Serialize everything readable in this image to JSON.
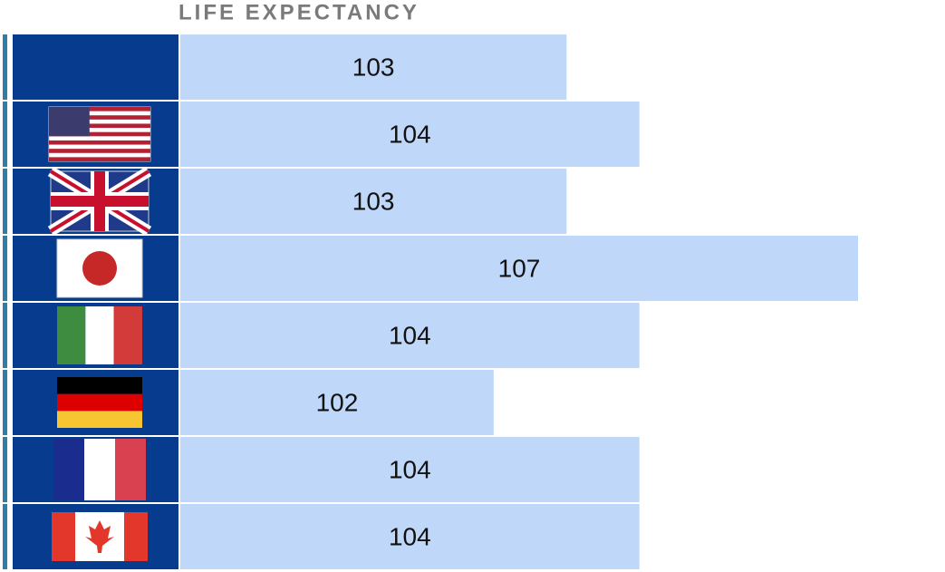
{
  "chart_data": {
    "type": "bar",
    "orientation": "horizontal",
    "title": "LIFE EXPECTANCY",
    "categories": [
      null,
      null,
      null,
      null,
      null,
      null,
      null,
      null
    ],
    "values": [
      103,
      104,
      103,
      107,
      104,
      102,
      104,
      104
    ],
    "color": "#bfd7f8",
    "xlim": [
      97.7,
      107
    ]
  }
}
